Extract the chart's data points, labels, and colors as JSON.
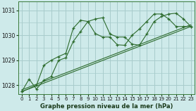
{
  "title": "Graphe pression niveau de la mer (hPa)",
  "bg_color": "#ceeaea",
  "grid_major_color": "#a8cccc",
  "grid_minor_color": "#b8dada",
  "line_color": "#2d6b2d",
  "xlim": [
    -0.5,
    23.5
  ],
  "ylim": [
    1027.65,
    1031.35
  ],
  "yticks": [
    1028,
    1029,
    1030,
    1031
  ],
  "xticks": [
    0,
    1,
    2,
    3,
    4,
    5,
    6,
    7,
    8,
    9,
    10,
    11,
    12,
    13,
    14,
    15,
    16,
    17,
    18,
    19,
    20,
    21,
    22,
    23
  ],
  "s1_x": [
    0,
    1,
    2,
    3,
    4,
    5,
    6,
    7,
    8,
    9,
    10,
    11,
    12,
    13,
    14,
    15,
    16,
    17,
    18,
    19,
    20,
    21,
    22,
    23
  ],
  "s1_y": [
    1027.75,
    1028.25,
    1027.85,
    1028.2,
    1028.35,
    1029.0,
    1029.1,
    1029.75,
    1030.15,
    1030.55,
    1030.65,
    1030.7,
    1030.05,
    1029.93,
    1029.93,
    1029.65,
    1029.6,
    1030.05,
    1030.55,
    1030.75,
    1030.85,
    1030.88,
    1030.65,
    1030.35
  ],
  "s2_x": [
    0,
    2,
    3,
    4,
    5,
    6,
    7,
    8,
    9,
    10,
    11,
    12,
    13,
    14,
    15,
    16,
    17,
    18,
    19,
    20,
    21,
    22,
    23
  ],
  "s2_y": [
    1027.75,
    1028.0,
    1028.8,
    1029.0,
    1029.15,
    1029.28,
    1030.28,
    1030.6,
    1030.55,
    1030.07,
    1029.93,
    1029.93,
    1029.62,
    1029.6,
    1030.0,
    1030.25,
    1030.55,
    1030.85,
    1030.85,
    1030.65,
    1030.35,
    1030.35,
    1030.35
  ],
  "sl1": [
    1027.75,
    1030.35
  ],
  "sl2": [
    1027.82,
    1030.42
  ]
}
